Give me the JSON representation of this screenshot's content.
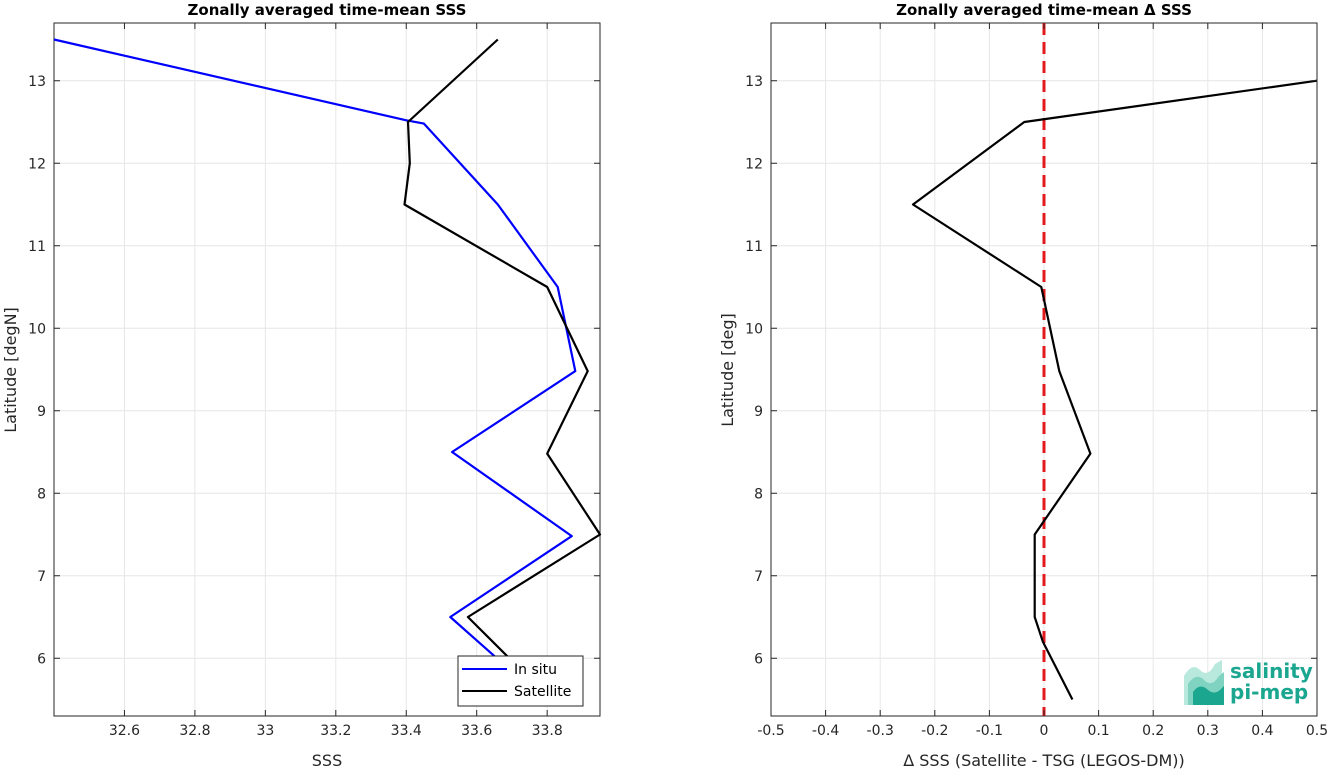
{
  "chart_data": [
    {
      "type": "line",
      "title": "Zonally averaged time-mean SSS",
      "xlabel": "SSS",
      "ylabel": "Latitude [degN]",
      "xlim": [
        32.4,
        33.95
      ],
      "ylim": [
        5.3,
        13.7
      ],
      "xticks": [
        32.6,
        32.8,
        33,
        33.2,
        33.4,
        33.6,
        33.8
      ],
      "xtick_labels": [
        "32.6",
        "32.8",
        "33",
        "33.2",
        "33.4",
        "33.6",
        "33.8"
      ],
      "yticks": [
        6,
        7,
        8,
        9,
        10,
        11,
        12,
        13
      ],
      "ytick_labels": [
        "6",
        "7",
        "8",
        "9",
        "10",
        "11",
        "12",
        "13"
      ],
      "grid": true,
      "legend_position": "bottom-right",
      "series": [
        {
          "name": "In situ",
          "color": "#0000ff",
          "x": [
            33.66,
            33.525,
            33.87,
            33.53,
            33.88,
            33.83,
            33.66,
            33.45,
            33.4,
            32.4
          ],
          "y": [
            5.99,
            6.5,
            7.48,
            8.5,
            9.48,
            10.5,
            11.5,
            12.48,
            12.52,
            13.5
          ]
        },
        {
          "name": "Satellite",
          "color": "#000000",
          "x": [
            33.695,
            33.575,
            33.95,
            33.8,
            33.915,
            33.8,
            33.395,
            33.41,
            33.405,
            33.66
          ],
          "y": [
            5.99,
            6.5,
            7.5,
            8.48,
            9.48,
            10.5,
            11.5,
            12.0,
            12.5,
            13.5
          ]
        }
      ]
    },
    {
      "type": "line",
      "title": "Zonally averaged time-mean Δ SSS",
      "xlabel": "Δ SSS (Satellite - TSG (LEGOS-DM))",
      "ylabel": "Latitude [deg]",
      "xlim": [
        -0.5,
        0.5
      ],
      "ylim": [
        5.3,
        13.7
      ],
      "xticks": [
        -0.5,
        -0.4,
        -0.3,
        -0.2,
        -0.1,
        0,
        0.1,
        0.2,
        0.3,
        0.4,
        0.5
      ],
      "xtick_labels": [
        "-0.5",
        "-0.4",
        "-0.3",
        "-0.2",
        "-0.1",
        "0",
        "0.1",
        "0.2",
        "0.3",
        "0.4",
        "0.5"
      ],
      "yticks": [
        6,
        7,
        8,
        9,
        10,
        11,
        12,
        13
      ],
      "ytick_labels": [
        "6",
        "7",
        "8",
        "9",
        "10",
        "11",
        "12",
        "13"
      ],
      "grid": true,
      "reference_line": {
        "x": 0,
        "color": "#e31a1c",
        "style": "dashed"
      },
      "series": [
        {
          "name": "",
          "color": "#000000",
          "x": [
            0.052,
            -0.002,
            -0.017,
            -0.017,
            0.085,
            0.028,
            -0.005,
            -0.24,
            -0.036,
            0.5
          ],
          "y": [
            5.5,
            6.2,
            6.5,
            7.5,
            8.48,
            9.48,
            10.5,
            11.5,
            12.5,
            13.0
          ]
        }
      ]
    }
  ],
  "logo": {
    "line1": "salinity",
    "line2": "pi-mep",
    "colors": [
      "#1aa68f",
      "#7fd3c0",
      "#b9e8dd"
    ]
  }
}
